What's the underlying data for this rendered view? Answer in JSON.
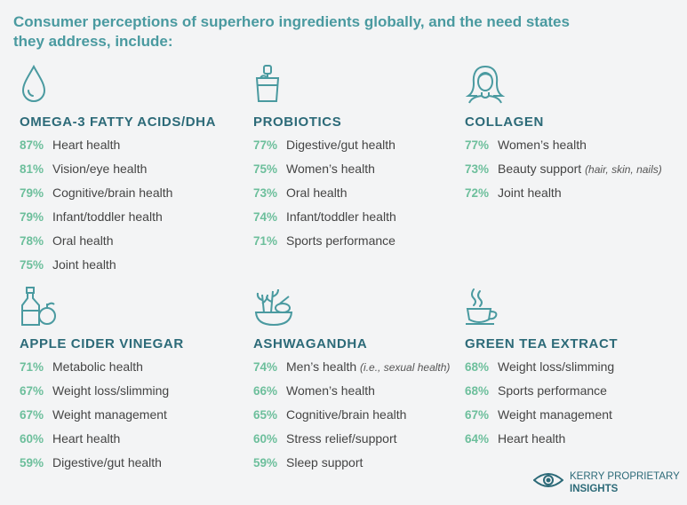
{
  "headline": "Consumer perceptions of superhero ingredients globally, and the need states they address, include:",
  "colors": {
    "heading": "#4a9aa0",
    "section_title": "#2c6a78",
    "percent": "#6dbf9c",
    "icon_stroke": "#4a9aa0"
  },
  "sections": [
    {
      "title": "OMEGA-3 FATTY ACIDS/DHA",
      "icon": "droplet-icon",
      "items": [
        {
          "pct": "87%",
          "label": "Heart health",
          "note": ""
        },
        {
          "pct": "81%",
          "label": "Vision/eye health",
          "note": ""
        },
        {
          "pct": "79%",
          "label": "Cognitive/brain health",
          "note": ""
        },
        {
          "pct": "79%",
          "label": "Infant/toddler health",
          "note": ""
        },
        {
          "pct": "78%",
          "label": "Oral health",
          "note": ""
        },
        {
          "pct": "75%",
          "label": "Joint health",
          "note": ""
        }
      ]
    },
    {
      "title": "PROBIOTICS",
      "icon": "yogurt-cup-icon",
      "items": [
        {
          "pct": "77%",
          "label": "Digestive/gut health",
          "note": ""
        },
        {
          "pct": "75%",
          "label": "Women’s health",
          "note": ""
        },
        {
          "pct": "73%",
          "label": "Oral health",
          "note": ""
        },
        {
          "pct": "74%",
          "label": "Infant/toddler health",
          "note": ""
        },
        {
          "pct": "71%",
          "label": "Sports performance",
          "note": ""
        }
      ]
    },
    {
      "title": "COLLAGEN",
      "icon": "woman-icon",
      "items": [
        {
          "pct": "77%",
          "label": "Women’s health",
          "note": ""
        },
        {
          "pct": "73%",
          "label": "Beauty support",
          "note": "(hair, skin, nails)"
        },
        {
          "pct": "72%",
          "label": "Joint health",
          "note": ""
        }
      ]
    },
    {
      "title": "APPLE CIDER VINEGAR",
      "icon": "bottle-apple-icon",
      "items": [
        {
          "pct": "71%",
          "label": "Metabolic health",
          "note": ""
        },
        {
          "pct": "67%",
          "label": "Weight loss/slimming",
          "note": ""
        },
        {
          "pct": "67%",
          "label": "Weight management",
          "note": ""
        },
        {
          "pct": "60%",
          "label": "Heart health",
          "note": ""
        },
        {
          "pct": "59%",
          "label": "Digestive/gut health",
          "note": ""
        }
      ]
    },
    {
      "title": "ASHWAGANDHA",
      "icon": "herb-bowl-icon",
      "items": [
        {
          "pct": "74%",
          "label": "Men’s health",
          "note": "(i.e., sexual health)"
        },
        {
          "pct": "66%",
          "label": "Women’s health",
          "note": ""
        },
        {
          "pct": "65%",
          "label": "Cognitive/brain health",
          "note": ""
        },
        {
          "pct": "60%",
          "label": "Stress relief/support",
          "note": ""
        },
        {
          "pct": "59%",
          "label": "Sleep support",
          "note": ""
        }
      ]
    },
    {
      "title": "GREEN TEA EXTRACT",
      "icon": "tea-cup-icon",
      "items": [
        {
          "pct": "68%",
          "label": "Weight loss/slimming",
          "note": ""
        },
        {
          "pct": "68%",
          "label": "Sports performance",
          "note": ""
        },
        {
          "pct": "67%",
          "label": "Weight management",
          "note": ""
        },
        {
          "pct": "64%",
          "label": "Heart health",
          "note": ""
        }
      ]
    }
  ],
  "brand": {
    "line1": "KERRY PROPRIETARY",
    "line2": "INSIGHTS",
    "icon": "eye-icon"
  }
}
